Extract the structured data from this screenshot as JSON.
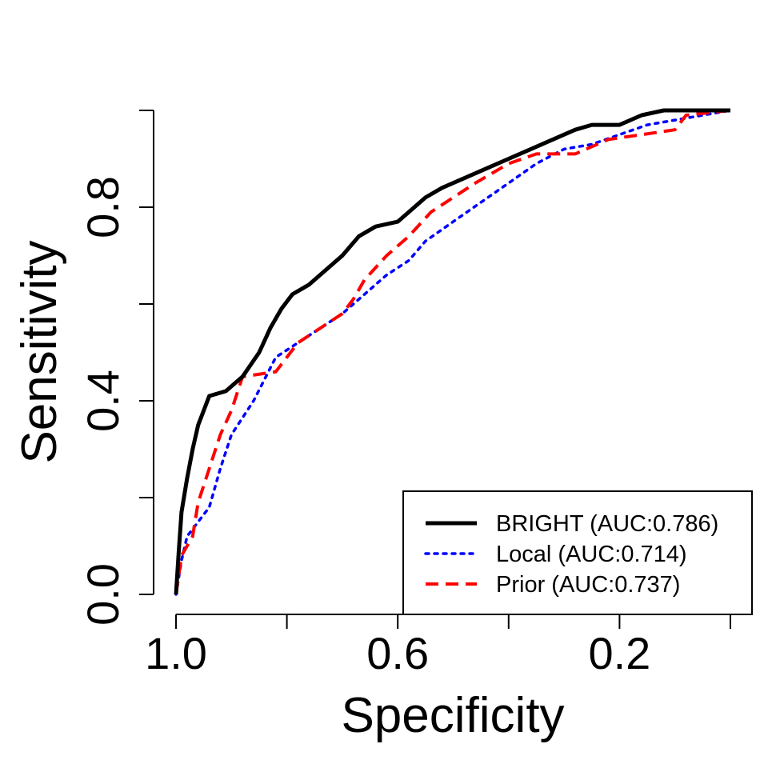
{
  "chart_data": {
    "type": "line",
    "xlabel": "Specificity",
    "ylabel": "Sensitivity",
    "x_reversed": true,
    "xlim": [
      1.0,
      0.0
    ],
    "ylim": [
      0.0,
      1.0
    ],
    "x_ticks": [
      1.0,
      0.8,
      0.6,
      0.4,
      0.2,
      0.0
    ],
    "x_tick_labels": [
      "1.0",
      "",
      "0.6",
      "",
      "0.2",
      ""
    ],
    "y_ticks": [
      0.0,
      0.2,
      0.4,
      0.6,
      0.8,
      1.0
    ],
    "y_tick_labels": [
      "0.0",
      "",
      "0.4",
      "",
      "0.8",
      ""
    ],
    "grid": false,
    "legend_position": "bottom-right",
    "series": [
      {
        "name": "BRIGHT (AUC:0.786)",
        "color": "#000000",
        "style": "solid",
        "points": [
          [
            1.0,
            0.0
          ],
          [
            0.995,
            0.09
          ],
          [
            0.99,
            0.17
          ],
          [
            0.98,
            0.24
          ],
          [
            0.97,
            0.3
          ],
          [
            0.96,
            0.35
          ],
          [
            0.95,
            0.38
          ],
          [
            0.94,
            0.41
          ],
          [
            0.91,
            0.42
          ],
          [
            0.88,
            0.45
          ],
          [
            0.85,
            0.5
          ],
          [
            0.83,
            0.55
          ],
          [
            0.81,
            0.59
          ],
          [
            0.79,
            0.62
          ],
          [
            0.76,
            0.64
          ],
          [
            0.73,
            0.67
          ],
          [
            0.7,
            0.7
          ],
          [
            0.67,
            0.74
          ],
          [
            0.64,
            0.76
          ],
          [
            0.6,
            0.77
          ],
          [
            0.58,
            0.79
          ],
          [
            0.55,
            0.82
          ],
          [
            0.52,
            0.84
          ],
          [
            0.48,
            0.86
          ],
          [
            0.44,
            0.88
          ],
          [
            0.4,
            0.9
          ],
          [
            0.36,
            0.92
          ],
          [
            0.32,
            0.94
          ],
          [
            0.28,
            0.96
          ],
          [
            0.25,
            0.97
          ],
          [
            0.2,
            0.97
          ],
          [
            0.16,
            0.99
          ],
          [
            0.12,
            1.0
          ],
          [
            0.0,
            1.0
          ]
        ]
      },
      {
        "name": "Local (AUC:0.714)",
        "color": "#0000ff",
        "style": "dotted",
        "points": [
          [
            1.0,
            0.0
          ],
          [
            0.99,
            0.07
          ],
          [
            0.98,
            0.12
          ],
          [
            0.96,
            0.15
          ],
          [
            0.94,
            0.18
          ],
          [
            0.92,
            0.26
          ],
          [
            0.9,
            0.33
          ],
          [
            0.86,
            0.4
          ],
          [
            0.82,
            0.49
          ],
          [
            0.78,
            0.52
          ],
          [
            0.74,
            0.55
          ],
          [
            0.7,
            0.58
          ],
          [
            0.66,
            0.62
          ],
          [
            0.62,
            0.66
          ],
          [
            0.58,
            0.69
          ],
          [
            0.55,
            0.73
          ],
          [
            0.5,
            0.77
          ],
          [
            0.45,
            0.81
          ],
          [
            0.4,
            0.85
          ],
          [
            0.35,
            0.89
          ],
          [
            0.3,
            0.92
          ],
          [
            0.25,
            0.93
          ],
          [
            0.2,
            0.95
          ],
          [
            0.15,
            0.97
          ],
          [
            0.1,
            0.98
          ],
          [
            0.0,
            1.0
          ]
        ]
      },
      {
        "name": "Prior (AUC:0.737)",
        "color": "#ff0000",
        "style": "dashed",
        "points": [
          [
            1.0,
            0.0
          ],
          [
            0.99,
            0.08
          ],
          [
            0.97,
            0.12
          ],
          [
            0.96,
            0.19
          ],
          [
            0.94,
            0.26
          ],
          [
            0.92,
            0.33
          ],
          [
            0.9,
            0.38
          ],
          [
            0.88,
            0.45
          ],
          [
            0.82,
            0.46
          ],
          [
            0.78,
            0.52
          ],
          [
            0.74,
            0.55
          ],
          [
            0.7,
            0.58
          ],
          [
            0.68,
            0.61
          ],
          [
            0.66,
            0.65
          ],
          [
            0.62,
            0.7
          ],
          [
            0.58,
            0.74
          ],
          [
            0.54,
            0.79
          ],
          [
            0.5,
            0.82
          ],
          [
            0.46,
            0.85
          ],
          [
            0.4,
            0.89
          ],
          [
            0.35,
            0.91
          ],
          [
            0.28,
            0.91
          ],
          [
            0.22,
            0.94
          ],
          [
            0.16,
            0.95
          ],
          [
            0.1,
            0.96
          ],
          [
            0.08,
            0.99
          ],
          [
            0.0,
            1.0
          ]
        ]
      }
    ]
  }
}
